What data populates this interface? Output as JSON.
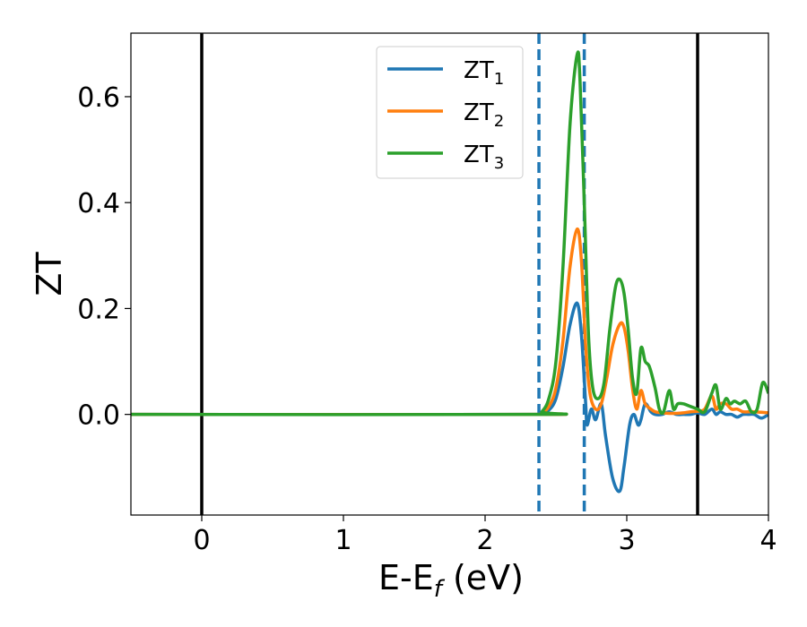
{
  "chart_data": {
    "type": "line",
    "xlabel": "E-E",
    "xlabel_sub": "f",
    "xlabel_unit": " (eV)",
    "ylabel": "ZT",
    "xlim": [
      -0.5,
      4.0
    ],
    "ylim": [
      -0.19,
      0.72
    ],
    "xticks": [
      0,
      1,
      2,
      3,
      4
    ],
    "xtick_labels": [
      "0",
      "1",
      "2",
      "3",
      "4"
    ],
    "yticks": [
      0.0,
      0.2,
      0.4,
      0.6
    ],
    "ytick_labels": [
      "0.0",
      "0.2",
      "0.4",
      "0.6"
    ],
    "grid": false,
    "legend_position": "top-center",
    "vlines_solid": [
      0.0,
      3.5
    ],
    "vlines_dashed": [
      2.38,
      2.7
    ],
    "series": [
      {
        "name": "ZT",
        "name_sub": "1",
        "color": "#1f77b4",
        "x": [
          -0.5,
          2.35,
          2.4,
          2.45,
          2.5,
          2.55,
          2.6,
          2.65,
          2.68,
          2.71,
          2.72,
          2.75,
          2.78,
          2.82,
          2.85,
          2.9,
          2.95,
          2.98,
          3.02,
          3.05,
          3.08,
          3.1,
          3.13,
          3.17,
          3.2,
          3.25,
          3.3,
          3.35,
          3.4,
          3.45,
          3.5,
          3.55,
          3.6,
          3.63,
          3.66,
          3.7,
          3.74,
          3.78,
          3.82,
          3.86,
          3.9,
          3.95,
          4.0
        ],
        "y": [
          0.0,
          0.0,
          0.002,
          0.008,
          0.03,
          0.09,
          0.17,
          0.21,
          0.15,
          0.02,
          -0.02,
          0.01,
          -0.01,
          0.02,
          -0.04,
          -0.12,
          -0.145,
          -0.1,
          -0.02,
          0.0,
          -0.02,
          -0.01,
          0.02,
          0.005,
          0.0,
          0.0,
          0.005,
          0.0,
          0.0,
          0.0,
          0.003,
          0.0,
          0.01,
          0.0,
          0.005,
          0.0,
          0.0,
          -0.005,
          0.0,
          0.0,
          0.0,
          -0.007,
          0.0
        ]
      },
      {
        "name": "ZT",
        "name_sub": "2",
        "color": "#ff7f0e",
        "x": [
          -0.5,
          2.35,
          2.4,
          2.45,
          2.5,
          2.55,
          2.6,
          2.65,
          2.68,
          2.71,
          2.74,
          2.78,
          2.82,
          2.86,
          2.9,
          2.95,
          2.98,
          3.01,
          3.04,
          3.07,
          3.1,
          3.13,
          3.17,
          3.2,
          3.25,
          3.3,
          3.35,
          3.4,
          3.45,
          3.5,
          3.55,
          3.6,
          3.63,
          3.66,
          3.7,
          3.74,
          3.78,
          3.82,
          3.86,
          3.9,
          3.95,
          4.0
        ],
        "y": [
          0.0,
          0.0,
          0.003,
          0.015,
          0.05,
          0.14,
          0.28,
          0.35,
          0.29,
          0.13,
          0.04,
          0.01,
          0.02,
          0.07,
          0.13,
          0.17,
          0.165,
          0.12,
          0.05,
          0.01,
          0.045,
          0.02,
          0.01,
          0.005,
          0.003,
          0.002,
          0.002,
          0.003,
          0.005,
          0.006,
          0.01,
          0.035,
          0.01,
          0.02,
          0.02,
          0.01,
          0.01,
          0.005,
          0.005,
          0.005,
          0.004,
          0.003
        ]
      },
      {
        "name": "ZT",
        "name_sub": "3",
        "color": "#2ca02c",
        "x": [
          -0.5,
          2.35,
          2.4,
          2.45,
          2.5,
          2.55,
          2.6,
          2.65,
          2.67,
          2.7,
          2.73,
          2.76,
          2.8,
          2.84,
          2.88,
          2.92,
          2.95,
          2.98,
          3.01,
          3.04,
          3.07,
          3.1,
          3.13,
          3.16,
          3.2,
          3.23,
          3.26,
          3.3,
          3.33,
          3.36,
          3.4,
          3.45,
          3.5,
          3.55,
          3.6,
          3.63,
          3.66,
          3.7,
          3.73,
          3.76,
          3.8,
          3.84,
          3.88,
          3.92,
          3.96,
          4.0
        ],
        "y": [
          0.0,
          0.0,
          0.005,
          0.03,
          0.1,
          0.28,
          0.55,
          0.68,
          0.63,
          0.4,
          0.15,
          0.05,
          0.03,
          0.06,
          0.16,
          0.24,
          0.255,
          0.23,
          0.16,
          0.07,
          0.04,
          0.125,
          0.1,
          0.09,
          0.05,
          0.01,
          0.005,
          0.045,
          0.01,
          0.02,
          0.02,
          0.015,
          0.01,
          0.005,
          0.04,
          0.055,
          0.01,
          0.03,
          0.02,
          0.025,
          0.02,
          0.025,
          0.005,
          0.01,
          0.06,
          0.04
        ]
      }
    ]
  }
}
